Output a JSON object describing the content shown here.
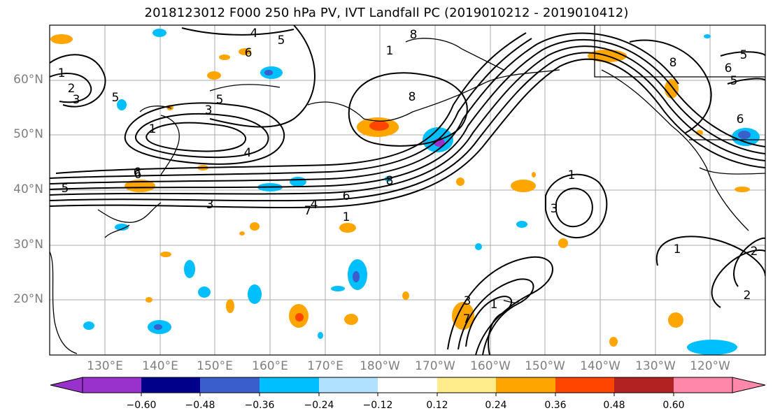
{
  "title": "2018123012 F000 250 hPa PV, IVT Landfall PC (2019010212 - 2019010412)",
  "map": {
    "lat_labels": [
      "60°N",
      "50°N",
      "40°N",
      "30°N",
      "20°N"
    ],
    "lon_labels": [
      "130°E",
      "140°E",
      "150°E",
      "160°E",
      "170°E",
      "180°W",
      "170°W",
      "160°W",
      "150°W",
      "140°W",
      "130°W",
      "120°W"
    ],
    "contour_labels": [
      "4",
      "5",
      "6",
      "8",
      "1",
      "2",
      "3",
      "5",
      "3",
      "5",
      "1",
      "4",
      "6",
      "5",
      "3",
      "4",
      "6",
      "7",
      "1",
      "8",
      "8",
      "6",
      "1",
      "3",
      "1",
      "2",
      "5",
      "6",
      "5",
      "8",
      "6",
      "3",
      "1",
      "7",
      "1",
      "2"
    ],
    "gridline_color": "#a8a8a8",
    "coast_color": "#000000"
  },
  "colorbar": {
    "ticks": [
      "−0.60",
      "−0.48",
      "−0.36",
      "−0.24",
      "−0.12",
      "0.12",
      "0.24",
      "0.36",
      "0.48",
      "0.60"
    ],
    "colors": [
      "#9932cc",
      "#00008b",
      "#3a5fcd",
      "#00bfff",
      "#b0e2ff",
      "#ffffff",
      "#ffec8b",
      "#ffa500",
      "#ff4500",
      "#b22222",
      "#ff88aa"
    ]
  }
}
